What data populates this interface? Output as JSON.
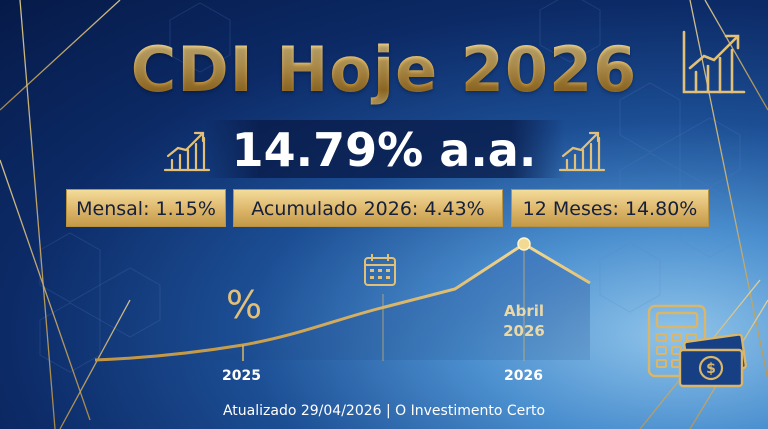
{
  "title": "CDI Hoje 2026",
  "rate": "14.79% a.a.",
  "pills": {
    "mensal": "Mensal: 1.15%",
    "acumulado": "Acumulado 2026: 4.43%",
    "doze_meses": "12 Meses: 14.80%"
  },
  "chart": {
    "percent_symbol": "%",
    "x_labels": [
      "2025",
      "2026"
    ],
    "peak_label_line1": "Abril",
    "peak_label_line2": "2026"
  },
  "footer": "Atualizado 29/04/2026 | O Investimento Certo",
  "icons": [
    "chart-growth-icon",
    "calendar-icon",
    "calculator-icon",
    "money-icon"
  ],
  "colors": {
    "gold": "#e2b863",
    "navy": "#0c2a66",
    "light_blue": "#8fc4ea"
  }
}
